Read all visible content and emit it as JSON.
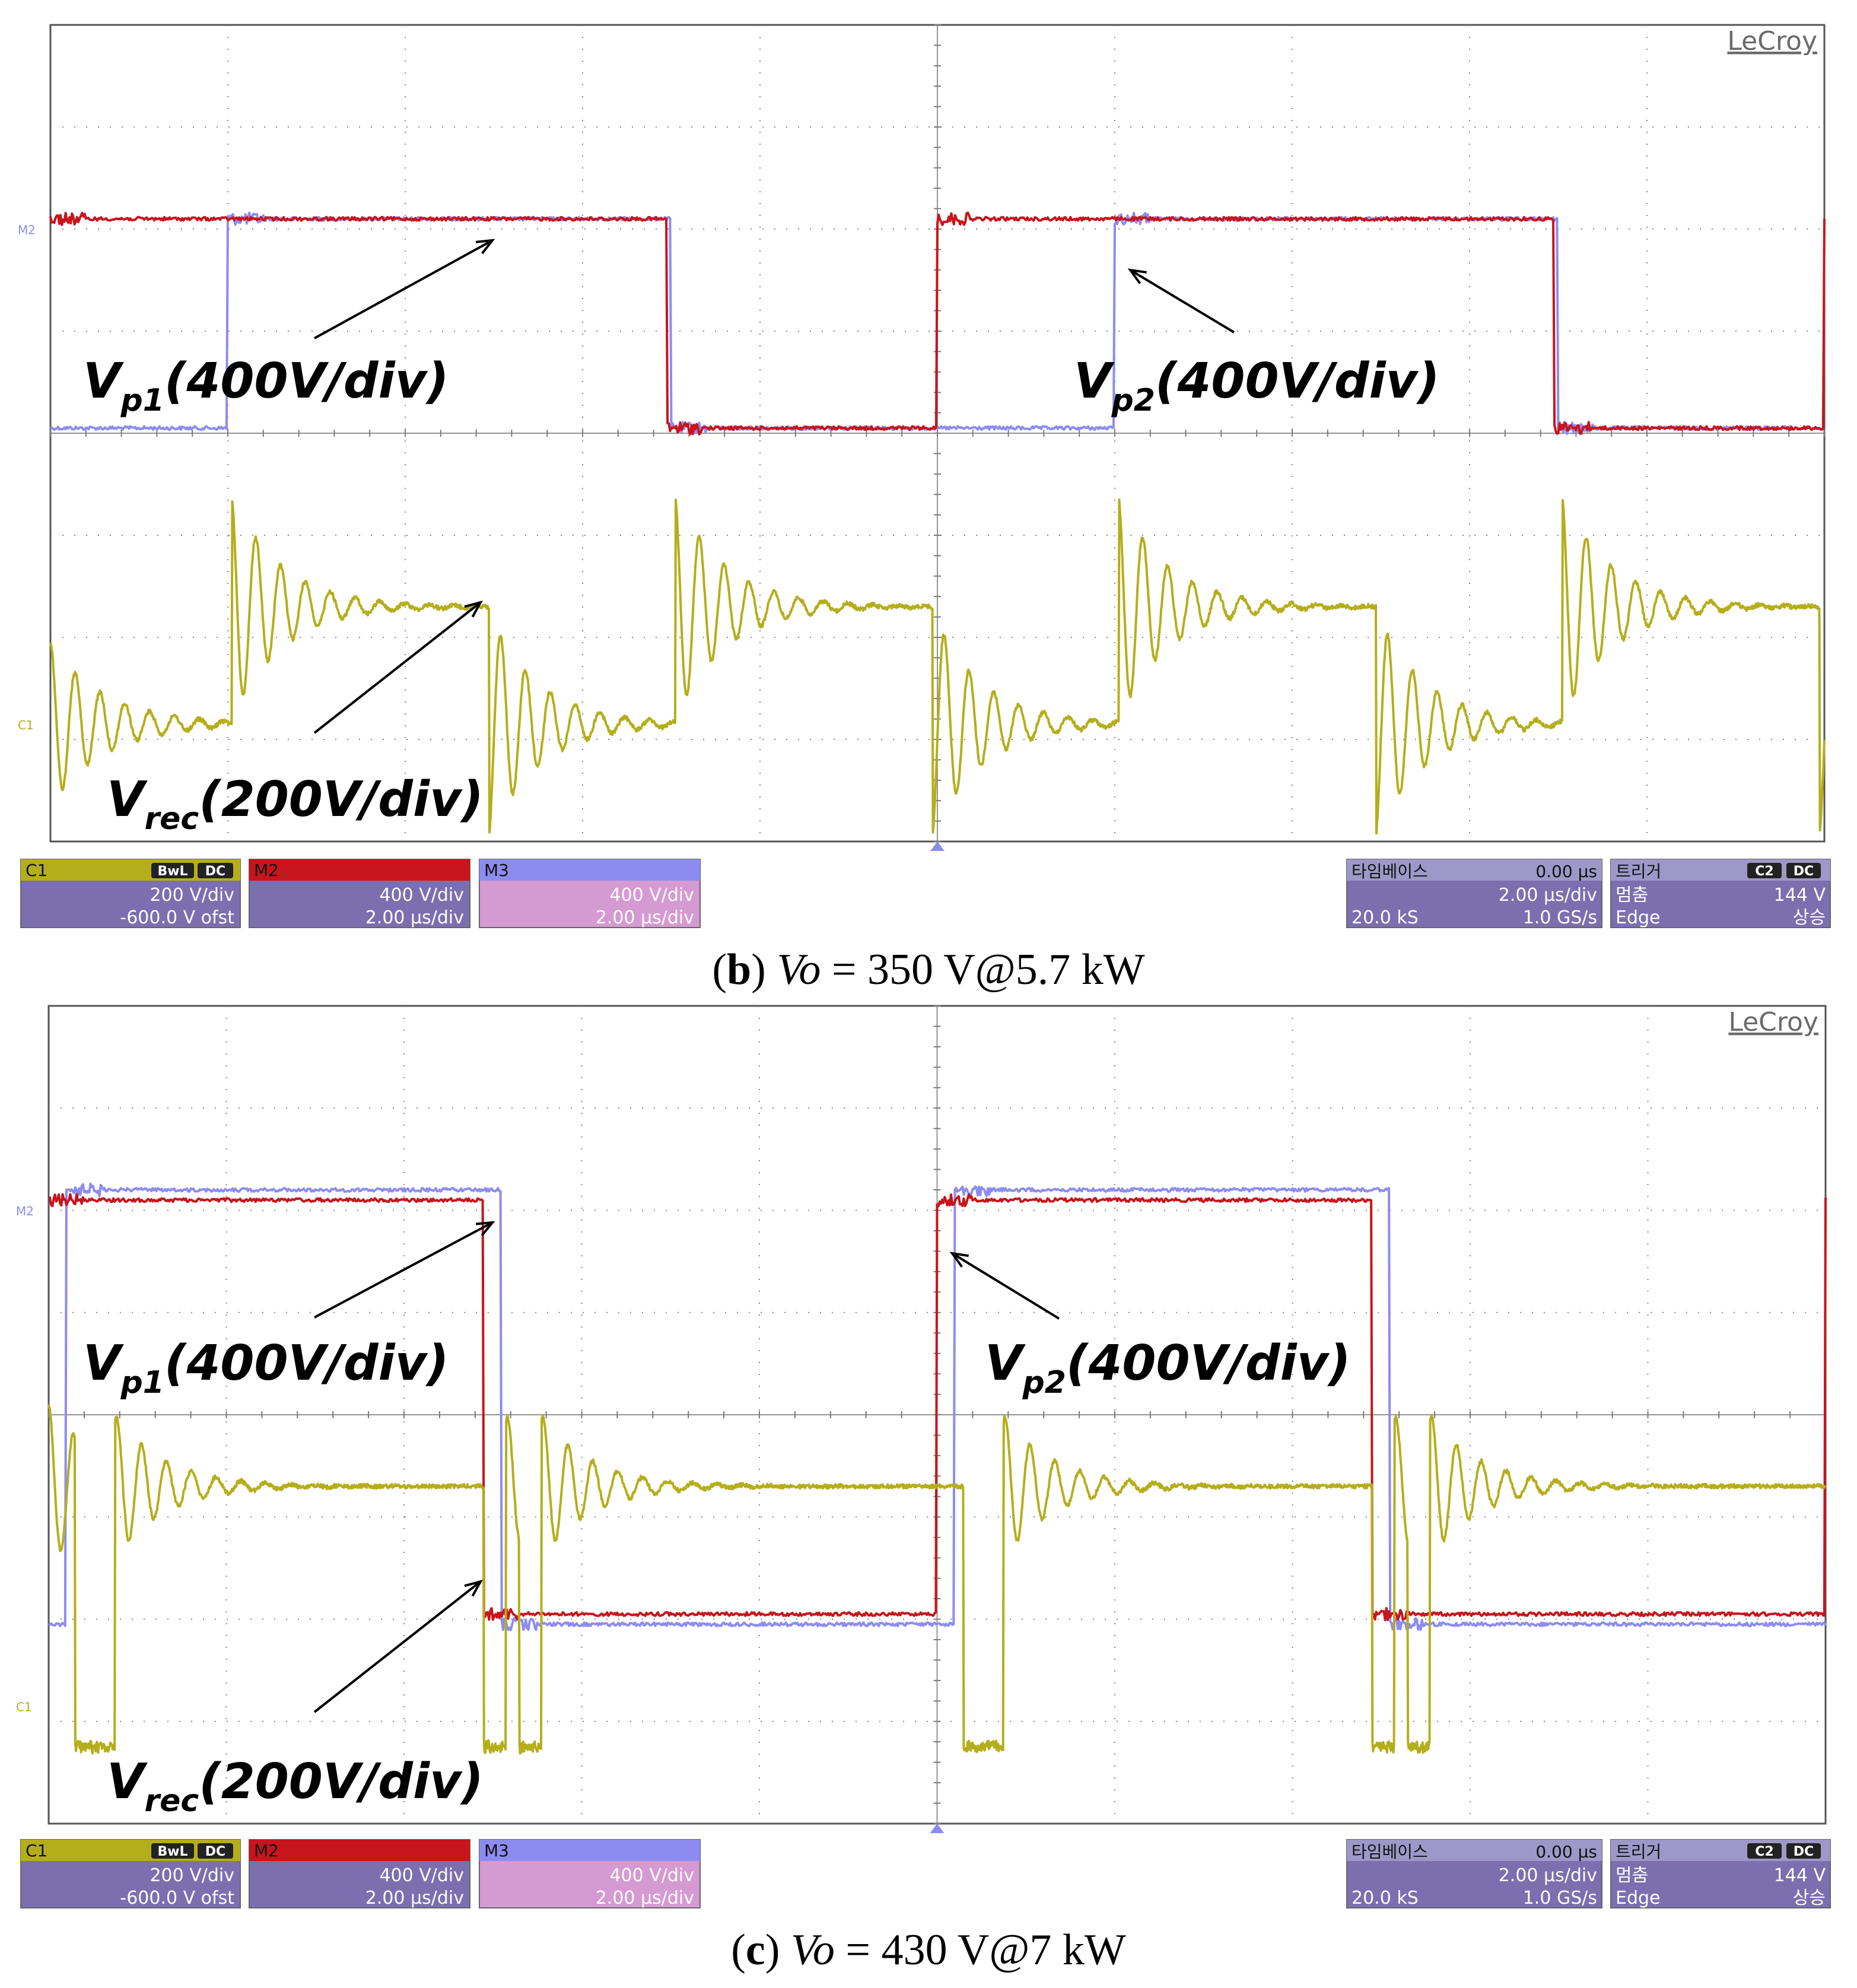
{
  "brand": "LeCroy",
  "colors": {
    "c1_trace": "#b5ae1c",
    "m2_trace": "#c8141c",
    "m3_trace": "#8c8cf0",
    "grid": "#7a7a7a",
    "panel_bg": "#7b6fb0",
    "c1_header": "#b5ae1c",
    "m2_header": "#c8141c",
    "m3_header": "#8c8cf0",
    "m3_body": "#d69ad2"
  },
  "icons": [
    "arrow-annotation",
    "trigger-marker-icon",
    "channel-marker-icon"
  ],
  "chart_data": [
    {
      "type": "line",
      "panel": "b",
      "caption": {
        "letter": "b",
        "var": "Vo",
        "rest": "= 350 V@5.7 kW"
      },
      "x_divisions": 10,
      "y_divisions": 8,
      "x_range_us": [
        0,
        20
      ],
      "annotations": [
        {
          "main": "V",
          "sub": "p1",
          "rest": "(400V/div)"
        },
        {
          "main": "V",
          "sub": "p2",
          "rest": "(400V/div)"
        },
        {
          "main": "V",
          "sub": "rec",
          "rest": "(200V/div)"
        }
      ],
      "markers": {
        "m2": "M2",
        "c1": "C1"
      },
      "series": [
        {
          "name": "M2",
          "shape": "square",
          "high_div": 1.9,
          "low_div": 3.95,
          "transitions_us": [
            0,
            6.95,
            10.0,
            16.95,
            20.0
          ],
          "start_high": true
        },
        {
          "name": "M3",
          "shape": "square",
          "high_div": 1.9,
          "low_div": 3.95,
          "transitions_us": [
            2.0,
            7.0,
            12.0,
            17.0
          ],
          "start_high": false
        },
        {
          "name": "C1",
          "shape": "rectified",
          "high_div": 5.7,
          "low_div": 6.85,
          "edges_us": [
            2.05,
            4.95,
            7.05,
            9.95,
            12.05,
            14.95,
            17.05,
            19.95
          ]
        }
      ],
      "channel_boxes": [
        {
          "id": "C1",
          "badges": [
            "BwL",
            "DC"
          ],
          "line1": "200 V/div",
          "line2": "-600.0 V ofst"
        },
        {
          "id": "M2",
          "badges": [],
          "line1": "400 V/div",
          "line2": "2.00 µs/div"
        },
        {
          "id": "M3",
          "badges": [],
          "line1": "400 V/div",
          "line2": "2.00 µs/div"
        }
      ],
      "timebase": {
        "title": "타임베이스",
        "delay": "0.00 µs",
        "div": "2.00 µs/div",
        "samples": "20.0 kS",
        "rate": "1.0 GS/s"
      },
      "trigger": {
        "title": "트리거",
        "badges": [
          "C2",
          "DC"
        ],
        "mode": "멈춤",
        "level": "144 V",
        "type": "Edge",
        "slope": "상승"
      }
    },
    {
      "type": "line",
      "panel": "c",
      "caption": {
        "letter": "c",
        "var": "Vo",
        "rest": "= 430 V@7 kW"
      },
      "x_divisions": 10,
      "y_divisions": 8,
      "x_range_us": [
        0,
        20
      ],
      "annotations": [
        {
          "main": "V",
          "sub": "p1",
          "rest": "(400V/div)"
        },
        {
          "main": "V",
          "sub": "p2",
          "rest": "(400V/div)"
        },
        {
          "main": "V",
          "sub": "rec",
          "rest": "(200V/div)"
        }
      ],
      "markers": {
        "m2": "M2",
        "c1": "C1"
      },
      "series": [
        {
          "name": "M2",
          "shape": "square",
          "high_div": 1.9,
          "low_div": 5.95,
          "transitions_us": [
            0,
            4.9,
            10.0,
            14.9,
            20.0
          ],
          "start_high": true
        },
        {
          "name": "M3",
          "shape": "square",
          "high_div": 1.8,
          "low_div": 6.05,
          "transitions_us": [
            0.2,
            5.1,
            10.2,
            15.1
          ],
          "start_high": false
        },
        {
          "name": "C1",
          "shape": "rectified",
          "high_div": 4.7,
          "low_div": 7.25,
          "edges_us": [
            0.3,
            0.5,
            4.9,
            5.3,
            10.3,
            10.5,
            14.9,
            15.3
          ]
        }
      ],
      "channel_boxes": [
        {
          "id": "C1",
          "badges": [
            "BwL",
            "DC"
          ],
          "line1": "200 V/div",
          "line2": "-600.0 V ofst"
        },
        {
          "id": "M2",
          "badges": [],
          "line1": "400 V/div",
          "line2": "2.00 µs/div"
        },
        {
          "id": "M3",
          "badges": [],
          "line1": "400 V/div",
          "line2": "2.00 µs/div"
        }
      ],
      "timebase": {
        "title": "타임베이스",
        "delay": "0.00 µs",
        "div": "2.00 µs/div",
        "samples": "20.0 kS",
        "rate": "1.0 GS/s"
      },
      "trigger": {
        "title": "트리거",
        "badges": [
          "C2",
          "DC"
        ],
        "mode": "멈춤",
        "level": "144 V",
        "type": "Edge",
        "slope": "상승"
      }
    }
  ]
}
